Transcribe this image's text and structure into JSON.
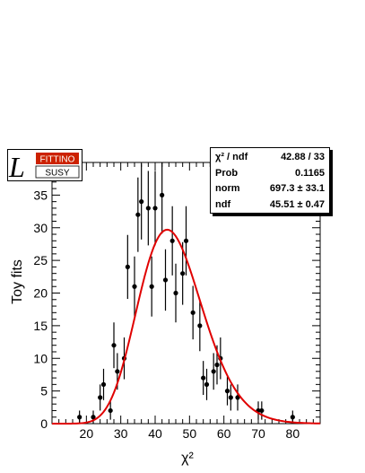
{
  "chart_data": {
    "type": "scatter",
    "xlabel": "χ²",
    "ylabel": "Toy fits",
    "xlim": [
      10,
      88
    ],
    "ylim": [
      0,
      40
    ],
    "xticks": [
      20,
      30,
      40,
      50,
      60,
      70,
      80
    ],
    "yticks": [
      0,
      5,
      10,
      15,
      20,
      25,
      30,
      35
    ],
    "points": [
      {
        "x": 18,
        "y": 1,
        "err": 1
      },
      {
        "x": 22,
        "y": 1,
        "err": 1
      },
      {
        "x": 24,
        "y": 4,
        "err": 2
      },
      {
        "x": 25,
        "y": 6,
        "err": 2.4
      },
      {
        "x": 27,
        "y": 2,
        "err": 1.4
      },
      {
        "x": 28,
        "y": 12,
        "err": 3.5
      },
      {
        "x": 29,
        "y": 8,
        "err": 2.8
      },
      {
        "x": 31,
        "y": 10,
        "err": 3.2
      },
      {
        "x": 32,
        "y": 24,
        "err": 4.9
      },
      {
        "x": 34,
        "y": 21,
        "err": 4.6
      },
      {
        "x": 35,
        "y": 32,
        "err": 5.7
      },
      {
        "x": 36,
        "y": 34,
        "err": 5.8
      },
      {
        "x": 38,
        "y": 33,
        "err": 5.7
      },
      {
        "x": 39,
        "y": 21,
        "err": 4.6
      },
      {
        "x": 40,
        "y": 33,
        "err": 5.7
      },
      {
        "x": 42,
        "y": 35,
        "err": 5.9
      },
      {
        "x": 43,
        "y": 22,
        "err": 4.7
      },
      {
        "x": 45,
        "y": 28,
        "err": 5.3
      },
      {
        "x": 46,
        "y": 20,
        "err": 4.5
      },
      {
        "x": 48,
        "y": 23,
        "err": 4.8
      },
      {
        "x": 49,
        "y": 28,
        "err": 5.3
      },
      {
        "x": 51,
        "y": 17,
        "err": 4.1
      },
      {
        "x": 53,
        "y": 15,
        "err": 3.9
      },
      {
        "x": 54,
        "y": 7,
        "err": 2.6
      },
      {
        "x": 55,
        "y": 6,
        "err": 2.4
      },
      {
        "x": 57,
        "y": 8,
        "err": 2.8
      },
      {
        "x": 58,
        "y": 9,
        "err": 3
      },
      {
        "x": 59,
        "y": 10,
        "err": 3.2
      },
      {
        "x": 61,
        "y": 5,
        "err": 2.2
      },
      {
        "x": 62,
        "y": 4,
        "err": 2
      },
      {
        "x": 64,
        "y": 4,
        "err": 2
      },
      {
        "x": 70,
        "y": 2,
        "err": 1.4
      },
      {
        "x": 71,
        "y": 2,
        "err": 1.4
      },
      {
        "x": 80,
        "y": 1,
        "err": 1
      }
    ],
    "fit": {
      "norm": 697.3,
      "ndf": 45.51,
      "color": "#e00000"
    },
    "stats": [
      {
        "label": "χ² / ndf",
        "value": "42.88 / 33"
      },
      {
        "label": "Prob",
        "value": "0.1165"
      },
      {
        "label": "norm",
        "value": "697.3 ± 33.1"
      },
      {
        "label": "ndf",
        "value": "45.51 ± 0.47"
      }
    ]
  },
  "logo": {
    "top_text": "FITTINO",
    "bottom_text": "SUSY",
    "accent": "#cc2200"
  }
}
